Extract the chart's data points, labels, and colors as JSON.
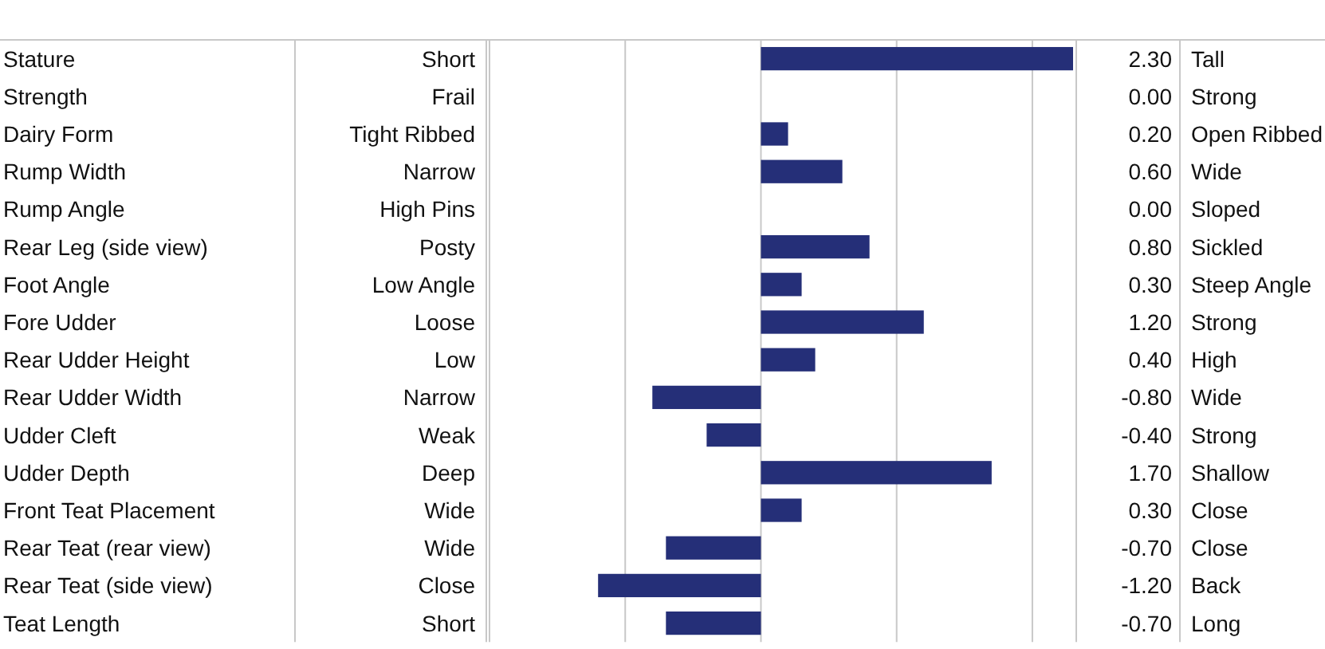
{
  "chart_data": {
    "type": "bar",
    "orientation": "horizontal",
    "categories": [
      "Stature",
      "Strength",
      "Dairy Form",
      "Rump Width",
      "Rump Angle",
      "Rear Leg (side view)",
      "Foot Angle",
      "Fore Udder",
      "Rear Udder Height",
      "Rear Udder Width",
      "Udder Cleft",
      "Udder Depth",
      "Front Teat Placement",
      "Rear Teat (rear view)",
      "Rear Teat (side view)",
      "Teat Length"
    ],
    "values": [
      2.3,
      0,
      0.2,
      0.6,
      0,
      0.8,
      0.3,
      1.2,
      0.4,
      -0.8,
      -0.4,
      1.7,
      0.3,
      -0.7,
      -1.2,
      -0.7
    ],
    "value_labels": [
      "2.30",
      "0.00",
      "0.20",
      "0.60",
      "0.00",
      "0.80",
      "0.30",
      "1.20",
      "0.40",
      "-0.80",
      "-0.40",
      "1.70",
      "0.30",
      "-0.70",
      "-1.20",
      "-0.70"
    ],
    "color": "#252f78",
    "xlim": [
      -2,
      2.3
    ],
    "xticks": [
      {
        "value": -2,
        "label": null
      },
      {
        "value": -1,
        "label": null
      },
      {
        "value": 0,
        "label": null
      },
      {
        "value": 1,
        "label": null
      },
      {
        "value": 2,
        "label": null
      }
    ],
    "grid": "x",
    "annotations": [
      "Short",
      "Tall",
      "Frail",
      "Strong",
      "Tight Ribbed",
      "Open Ribbed",
      "Narrow",
      "Wide",
      "High Pins",
      "Sloped",
      "Posty",
      "Sickled",
      "Low Angle",
      "Steep Angle",
      "Loose",
      "Strong",
      "Low",
      "High",
      "Narrow",
      "Wide",
      "Weak",
      "Strong",
      "Deep",
      "Shallow",
      "Wide",
      "Close",
      "Wide",
      "Close",
      "Close",
      "Back",
      "Short",
      "Long"
    ]
  }
}
